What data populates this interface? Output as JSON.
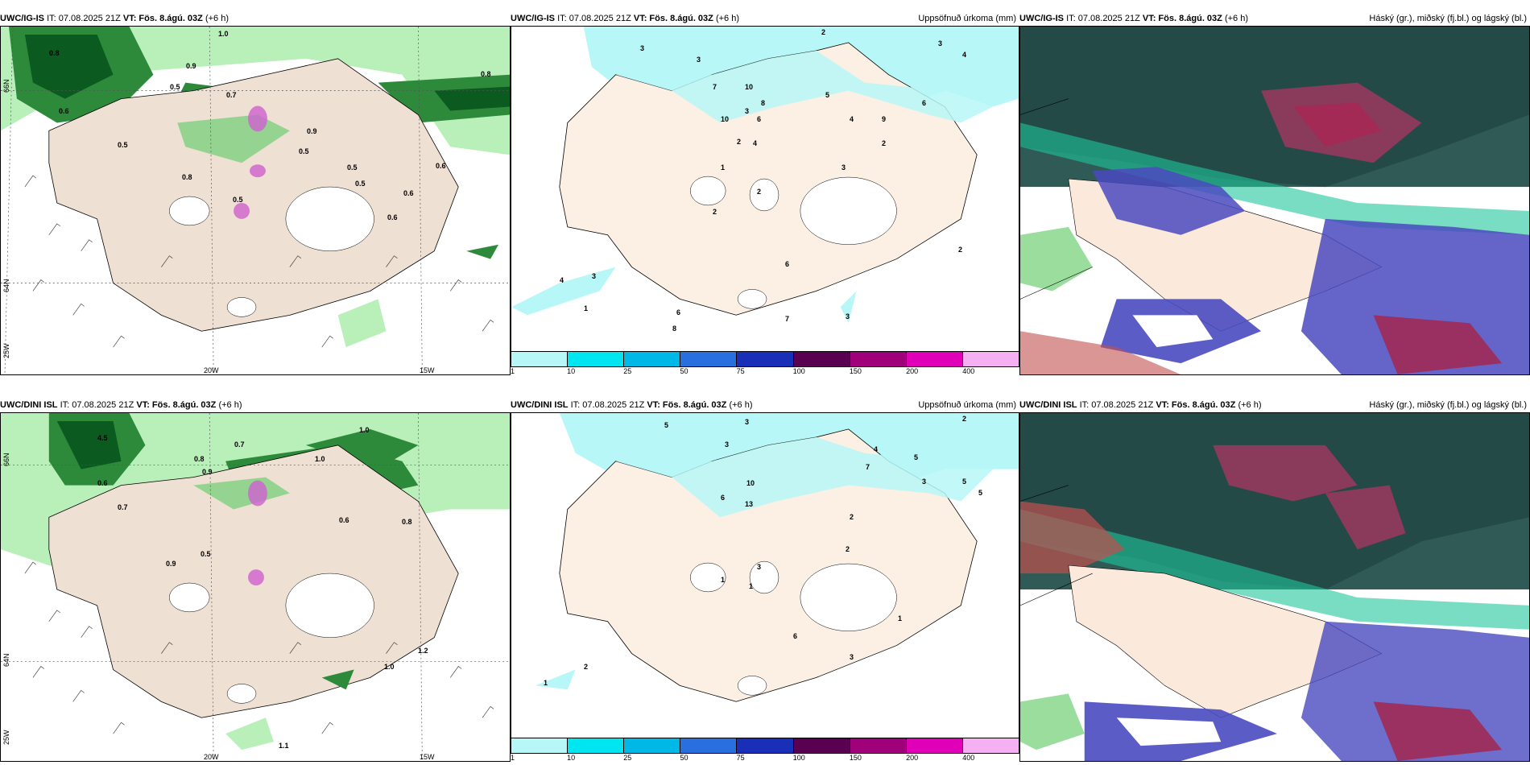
{
  "row1": {
    "wind": {
      "model": "UWC/IG-IS",
      "it": "IT: 07.08.2025 21Z",
      "vt": "VT: Fös. 8.ágú. 03Z",
      "lead": "(+6 h)"
    },
    "precip": {
      "model": "UWC/IG-IS",
      "it": "IT: 07.08.2025 21Z",
      "vt": "VT: Fös. 8.ágú. 03Z",
      "lead": "(+6 h)",
      "right": "Uppsöfnuð úrkoma (mm)"
    },
    "cloud": {
      "model": "UWC/IG-IS",
      "it": "IT: 07.08.2025 21Z",
      "vt": "VT: Fös. 8.ágú. 03Z",
      "lead": "(+6 h)",
      "right": "Háský (gr.), miðský (fj.bl.) og lágský (bl.)"
    }
  },
  "row2": {
    "wind": {
      "model": "UWC/DINI ISL",
      "it": "IT: 07.08.2025 21Z",
      "vt": "VT: Fös. 8.ágú. 03Z",
      "lead": "(+6 h)"
    },
    "precip": {
      "model": "UWC/DINI ISL",
      "it": "IT: 07.08.2025 21Z",
      "vt": "VT: Fös. 8.ágú. 03Z",
      "lead": "(+6 h)",
      "right": "Uppsöfnuð úrkoma (mm)"
    },
    "cloud": {
      "model": "UWC/DINI ISL",
      "it": "IT: 07.08.2025 21Z",
      "vt": "VT: Fös. 8.ágú. 03Z",
      "lead": "(+6 h)",
      "right": "Háský (gr.), miðský (fj.bl.) og lágský (bl.)"
    }
  },
  "axis": {
    "lat66": "66N",
    "lat64": "64N",
    "lon25": "25W",
    "lon20": "20W",
    "lon15": "15W"
  },
  "colorbar": {
    "labels": [
      "1",
      "10",
      "25",
      "50",
      "75",
      "100",
      "150",
      "200",
      "400"
    ],
    "colors": [
      "#b7f7f7",
      "#00e6f0",
      "#00b8e6",
      "#2a6fe0",
      "#1a2fb8",
      "#5a0050",
      "#a0007a",
      "#e000b8",
      "#f4b0f0"
    ]
  },
  "precip_values_row1": [
    "3",
    "2",
    "3",
    "4",
    "3",
    "7",
    "10",
    "9",
    "4",
    "5",
    "6",
    "8",
    "3",
    "10",
    "6",
    "4",
    "2",
    "1",
    "2",
    "2",
    "3",
    "2",
    "4",
    "3",
    "1",
    "6",
    "8",
    "7",
    "3",
    "2",
    "6"
  ],
  "precip_values_row2": [
    "5",
    "3",
    "2",
    "3",
    "4",
    "5",
    "7",
    "6",
    "13",
    "10",
    "3",
    "2",
    "1",
    "1",
    "3",
    "2",
    "6",
    "3",
    "1",
    "2",
    "5",
    "5",
    "1"
  ],
  "wind_values_row1": [
    "0.6",
    "0.8",
    "1.0",
    "0.5",
    "0.9",
    "0.7",
    "0.5",
    "0.6",
    "0.8",
    "0.5",
    "0.6",
    "0.5",
    "0.8",
    "0.9",
    "0.5",
    "0.6",
    "0.5"
  ],
  "wind_values_row2": [
    "4.5",
    "1.0",
    "0.7",
    "0.8",
    "0.9",
    "1.0",
    "0.6",
    "0.5",
    "0.9",
    "1.2",
    "1.0",
    "1.1",
    "0.8",
    "0.6",
    "0.7"
  ]
}
